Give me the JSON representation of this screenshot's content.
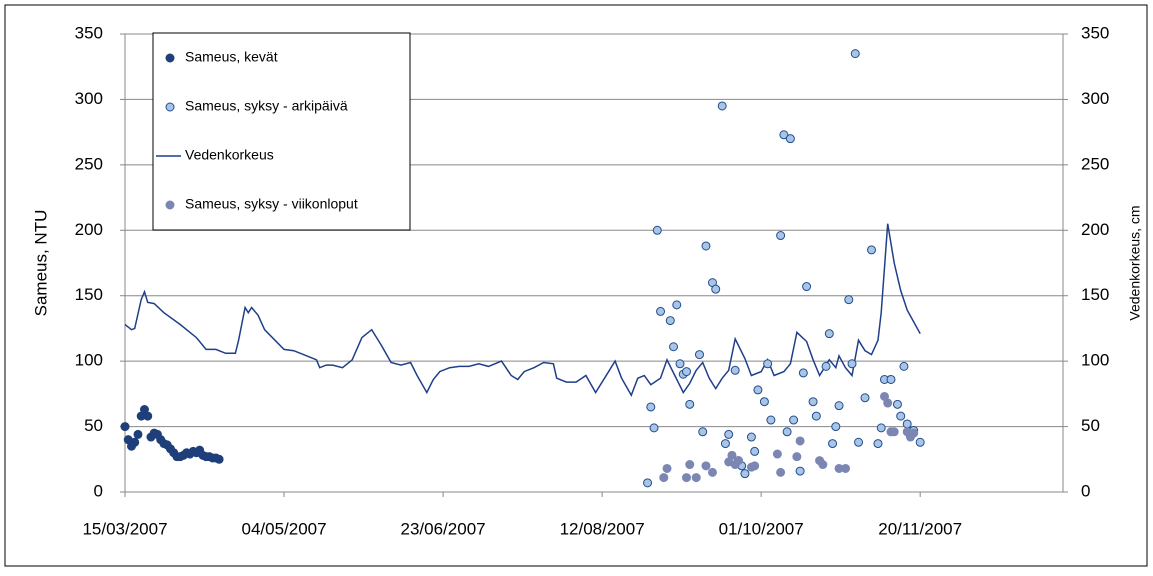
{
  "chart_data": {
    "type": "scatter",
    "ylabel": "Sameus, NTU",
    "y2label": "Vedenkorkeus, cm",
    "xlim": [
      "2007-03-15",
      "2007-12-29"
    ],
    "xticks": [
      {
        "value": "2007-03-15",
        "label": "15/03/2007"
      },
      {
        "value": "2007-05-03",
        "label": "04/05/2007"
      },
      {
        "value": "2007-06-21",
        "label": "23/06/2007"
      },
      {
        "value": "2007-08-09",
        "label": "12/08/2007"
      },
      {
        "value": "2007-09-27",
        "label": "01/10/2007"
      },
      {
        "value": "2007-11-15",
        "label": "20/11/2007"
      }
    ],
    "ylim": [
      0,
      350
    ],
    "yticks": [
      0,
      50,
      100,
      150,
      200,
      250,
      300,
      350
    ],
    "y2lim": [
      0,
      350
    ],
    "y2ticks": [
      0,
      50,
      100,
      150,
      200,
      250,
      300,
      350
    ],
    "grid": true,
    "legend": "upper left",
    "series": [
      {
        "name": "Sameus, kevät",
        "type": "scatter",
        "color": "#1f3f7a",
        "x": [
          "2007-03-15",
          "2007-03-16",
          "2007-03-17",
          "2007-03-18",
          "2007-03-19",
          "2007-03-20",
          "2007-03-21",
          "2007-03-22",
          "2007-03-23",
          "2007-03-24",
          "2007-03-25",
          "2007-03-26",
          "2007-03-27",
          "2007-03-28",
          "2007-03-29",
          "2007-03-30",
          "2007-03-31",
          "2007-04-01",
          "2007-04-02",
          "2007-04-03",
          "2007-04-04",
          "2007-04-05",
          "2007-04-06",
          "2007-04-07",
          "2007-04-08",
          "2007-04-09",
          "2007-04-10",
          "2007-04-11",
          "2007-04-12",
          "2007-04-13"
        ],
        "values": [
          50,
          40,
          35,
          38,
          44,
          58,
          63,
          58,
          42,
          45,
          44,
          40,
          37,
          36,
          33,
          30,
          27,
          27,
          28,
          30,
          29,
          31,
          30,
          32,
          28,
          27,
          27,
          26,
          26,
          25
        ]
      },
      {
        "name": "Sameus, syksy - arkipäivä",
        "type": "scatter",
        "color": "#a9c4e6",
        "x": [
          "2007-08-23",
          "2007-08-24",
          "2007-08-25",
          "2007-08-26",
          "2007-08-27",
          "2007-08-30",
          "2007-08-31",
          "2007-09-01",
          "2007-09-02",
          "2007-09-03",
          "2007-09-04",
          "2007-09-05",
          "2007-09-08",
          "2007-09-09",
          "2007-09-10",
          "2007-09-12",
          "2007-09-13",
          "2007-09-15",
          "2007-09-16",
          "2007-09-17",
          "2007-09-19",
          "2007-09-20",
          "2007-09-21",
          "2007-09-22",
          "2007-09-24",
          "2007-09-25",
          "2007-09-26",
          "2007-09-28",
          "2007-09-29",
          "2007-09-30",
          "2007-10-03",
          "2007-10-04",
          "2007-10-05",
          "2007-10-06",
          "2007-10-07",
          "2007-10-09",
          "2007-10-10",
          "2007-10-11",
          "2007-10-13",
          "2007-10-14",
          "2007-10-17",
          "2007-10-18",
          "2007-10-19",
          "2007-10-20",
          "2007-10-21",
          "2007-10-24",
          "2007-10-25",
          "2007-10-26",
          "2007-10-27",
          "2007-10-29",
          "2007-10-31",
          "2007-11-02",
          "2007-11-03",
          "2007-11-04",
          "2007-11-06",
          "2007-11-08",
          "2007-11-09",
          "2007-11-10",
          "2007-11-11",
          "2007-11-12",
          "2007-11-13",
          "2007-11-15"
        ],
        "values": [
          7,
          65,
          49,
          200,
          138,
          131,
          111,
          143,
          98,
          90,
          92,
          67,
          105,
          46,
          188,
          160,
          155,
          295,
          37,
          44,
          93,
          24,
          20,
          14,
          42,
          31,
          78,
          69,
          98,
          55,
          196,
          273,
          46,
          270,
          55,
          16,
          91,
          157,
          69,
          58,
          96,
          121,
          37,
          50,
          66,
          147,
          98,
          335,
          38,
          72,
          185,
          37,
          49,
          86,
          86,
          67,
          58,
          96,
          52,
          46,
          47,
          38
        ]
      },
      {
        "name": "Vedenkorkeus",
        "type": "line",
        "axis": "y2",
        "color": "#1f3f8a",
        "x": [
          "2007-03-15",
          "2007-03-17",
          "2007-03-18",
          "2007-03-20",
          "2007-03-21",
          "2007-03-22",
          "2007-03-24",
          "2007-03-27",
          "2007-04-01",
          "2007-04-06",
          "2007-04-09",
          "2007-04-12",
          "2007-04-15",
          "2007-04-18",
          "2007-04-19",
          "2007-04-21",
          "2007-04-22",
          "2007-04-23",
          "2007-04-25",
          "2007-04-27",
          "2007-05-01",
          "2007-05-03",
          "2007-05-06",
          "2007-05-09",
          "2007-05-13",
          "2007-05-14",
          "2007-05-16",
          "2007-05-18",
          "2007-05-21",
          "2007-05-24",
          "2007-05-27",
          "2007-05-30",
          "2007-06-02",
          "2007-06-05",
          "2007-06-08",
          "2007-06-11",
          "2007-06-13",
          "2007-06-16",
          "2007-06-18",
          "2007-06-20",
          "2007-06-23",
          "2007-06-26",
          "2007-06-29",
          "2007-07-02",
          "2007-07-05",
          "2007-07-09",
          "2007-07-12",
          "2007-07-14",
          "2007-07-16",
          "2007-07-19",
          "2007-07-22",
          "2007-07-25",
          "2007-07-26",
          "2007-07-29",
          "2007-08-01",
          "2007-08-04",
          "2007-08-07",
          "2007-08-10",
          "2007-08-13",
          "2007-08-15",
          "2007-08-18",
          "2007-08-20",
          "2007-08-22",
          "2007-08-24",
          "2007-08-27",
          "2007-08-29",
          "2007-09-01",
          "2007-09-03",
          "2007-09-05",
          "2007-09-07",
          "2007-09-09",
          "2007-09-11",
          "2007-09-13",
          "2007-09-15",
          "2007-09-17",
          "2007-09-19",
          "2007-09-22",
          "2007-09-24",
          "2007-09-27",
          "2007-09-29",
          "2007-10-01",
          "2007-10-04",
          "2007-10-06",
          "2007-10-08",
          "2007-10-11",
          "2007-10-13",
          "2007-10-15",
          "2007-10-18",
          "2007-10-20",
          "2007-10-21",
          "2007-10-23",
          "2007-10-25",
          "2007-10-27",
          "2007-10-29",
          "2007-10-31",
          "2007-11-02",
          "2007-11-03",
          "2007-11-05",
          "2007-11-07",
          "2007-11-09",
          "2007-11-11",
          "2007-11-13",
          "2007-11-15"
        ],
        "values": [
          128,
          124,
          125,
          147,
          153,
          145,
          144,
          137,
          128,
          118,
          109,
          109,
          106,
          106,
          116,
          141,
          137,
          141,
          135,
          124,
          114,
          109,
          108,
          105,
          101,
          95,
          97,
          97,
          95,
          101,
          118,
          124,
          112,
          99,
          97,
          99,
          89,
          76,
          86,
          92,
          95,
          96,
          96,
          98,
          96,
          100,
          89,
          86,
          92,
          95,
          99,
          98,
          87,
          84,
          84,
          89,
          76,
          88,
          100,
          87,
          74,
          87,
          89,
          82,
          87,
          101,
          86,
          76,
          83,
          93,
          99,
          87,
          79,
          87,
          93,
          117,
          102,
          89,
          92,
          101,
          89,
          92,
          98,
          122,
          115,
          101,
          89,
          101,
          95,
          104,
          95,
          89,
          116,
          108,
          105,
          116,
          137,
          205,
          175,
          154,
          139,
          130,
          121
        ]
      },
      {
        "name": "Sameus, syksy - viikonloput",
        "type": "scatter",
        "color": "#7b86b3",
        "x": [
          "2007-08-28",
          "2007-08-29",
          "2007-09-04",
          "2007-09-05",
          "2007-09-07",
          "2007-09-10",
          "2007-09-12",
          "2007-09-17",
          "2007-09-18",
          "2007-09-19",
          "2007-09-20",
          "2007-09-24",
          "2007-09-25",
          "2007-10-02",
          "2007-10-03",
          "2007-10-08",
          "2007-10-09",
          "2007-10-15",
          "2007-10-16",
          "2007-10-21",
          "2007-10-23",
          "2007-11-04",
          "2007-11-05",
          "2007-11-06",
          "2007-11-07",
          "2007-11-11",
          "2007-11-12",
          "2007-11-13"
        ],
        "values": [
          11,
          18,
          11,
          21,
          11,
          20,
          15,
          23,
          28,
          21,
          24,
          19,
          20,
          29,
          15,
          27,
          39,
          24,
          21,
          18,
          18,
          73,
          68,
          46,
          46,
          46,
          42,
          45
        ]
      }
    ]
  }
}
